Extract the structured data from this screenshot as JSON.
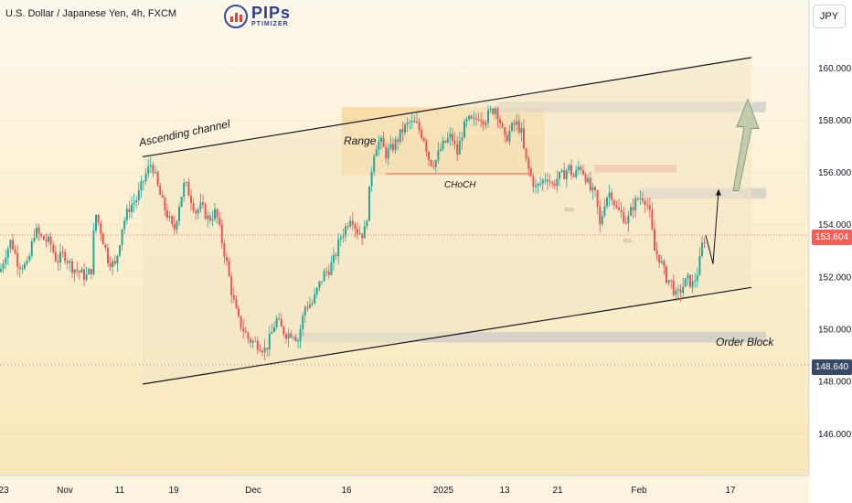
{
  "header": {
    "symbol_title": "U.S. Dollar / Japanese Yen, 4h, FXCM"
  },
  "logo": {
    "main": "PIPs",
    "sub": "PTIMIZER"
  },
  "currency_button": "JPY",
  "price_axis": {
    "ticks": [
      "160.000",
      "158.000",
      "156.000",
      "154.000",
      "152.000",
      "150.000",
      "148.000",
      "146.000"
    ],
    "current_price_label": "153.604",
    "low_price_label": "148.640"
  },
  "time_axis": {
    "ticks": [
      "23",
      "Nov",
      "11",
      "19",
      "Dec",
      "16",
      "2025",
      "13",
      "21",
      "Feb",
      "17"
    ]
  },
  "annotations": {
    "ascending_channel": "Ascending channel",
    "range": "Range",
    "choch": "CHoCH",
    "order_block": "Order Block",
    "bos1": "bos",
    "bos2": "bos"
  },
  "colors": {
    "up_candle": "#26a69a",
    "down_candle": "#ef5350",
    "current_price": "#f0615a",
    "low_price_box": "#3a4a66",
    "range_fill": "#f7c97e",
    "zone_fill": "#c9c9c9"
  },
  "chart_data": {
    "type": "candlestick",
    "symbol": "USDJPY",
    "timeframe": "4h",
    "ylim": [
      144.4,
      162.6
    ],
    "current_price": 153.604,
    "marked_low": 148.64,
    "close_path": [
      [
        0,
        152.2
      ],
      [
        6,
        152.9
      ],
      [
        12,
        153.4
      ],
      [
        20,
        152.5
      ],
      [
        30,
        152.4
      ],
      [
        38,
        153.8
      ],
      [
        45,
        153.5
      ],
      [
        55,
        153.3
      ],
      [
        62,
        152.6
      ],
      [
        70,
        152.9
      ],
      [
        78,
        152.4
      ],
      [
        86,
        152.2
      ],
      [
        94,
        152.0
      ],
      [
        100,
        152.3
      ],
      [
        104,
        154.5
      ],
      [
        110,
        153.8
      ],
      [
        118,
        152.7
      ],
      [
        126,
        152.4
      ],
      [
        134,
        154.0
      ],
      [
        142,
        154.7
      ],
      [
        150,
        155.0
      ],
      [
        158,
        155.8
      ],
      [
        166,
        156.4
      ],
      [
        172,
        155.5
      ],
      [
        178,
        154.8
      ],
      [
        184,
        154.3
      ],
      [
        190,
        153.7
      ],
      [
        196,
        154.8
      ],
      [
        202,
        155.6
      ],
      [
        208,
        155.1
      ],
      [
        214,
        154.5
      ],
      [
        220,
        154.7
      ],
      [
        228,
        154.2
      ],
      [
        236,
        154.5
      ],
      [
        242,
        153.5
      ],
      [
        248,
        152.5
      ],
      [
        254,
        151.3
      ],
      [
        260,
        150.4
      ],
      [
        266,
        150.0
      ],
      [
        272,
        149.6
      ],
      [
        278,
        149.5
      ],
      [
        284,
        149.4
      ],
      [
        290,
        149.2
      ],
      [
        296,
        149.7
      ],
      [
        302,
        150.4
      ],
      [
        308,
        150.0
      ],
      [
        314,
        149.8
      ],
      [
        320,
        149.9
      ],
      [
        326,
        149.6
      ],
      [
        334,
        150.9
      ],
      [
        342,
        151.0
      ],
      [
        348,
        151.6
      ],
      [
        354,
        152.1
      ],
      [
        360,
        152.3
      ],
      [
        366,
        152.7
      ],
      [
        372,
        153.5
      ],
      [
        378,
        153.9
      ],
      [
        384,
        154.4
      ],
      [
        390,
        153.8
      ],
      [
        398,
        153.6
      ],
      [
        402,
        154.5
      ],
      [
        406,
        156.0
      ],
      [
        410,
        157.0
      ],
      [
        416,
        157.2
      ],
      [
        422,
        156.7
      ],
      [
        428,
        156.9
      ],
      [
        434,
        157.2
      ],
      [
        440,
        157.6
      ],
      [
        448,
        157.9
      ],
      [
        456,
        157.8
      ],
      [
        464,
        157.3
      ],
      [
        470,
        156.4
      ],
      [
        476,
        156.4
      ],
      [
        482,
        156.9
      ],
      [
        488,
        157.2
      ],
      [
        494,
        157.4
      ],
      [
        500,
        156.7
      ],
      [
        506,
        157.6
      ],
      [
        512,
        158.0
      ],
      [
        518,
        157.9
      ],
      [
        524,
        158.2
      ],
      [
        530,
        158.0
      ],
      [
        536,
        158.3
      ],
      [
        542,
        158.5
      ],
      [
        546,
        158.1
      ],
      [
        552,
        157.2
      ],
      [
        558,
        157.6
      ],
      [
        564,
        157.9
      ],
      [
        570,
        157.6
      ],
      [
        574,
        156.6
      ],
      [
        580,
        155.9
      ],
      [
        586,
        155.4
      ],
      [
        592,
        155.6
      ],
      [
        598,
        155.9
      ],
      [
        604,
        155.5
      ],
      [
        610,
        155.8
      ],
      [
        616,
        155.9
      ],
      [
        622,
        156.2
      ],
      [
        628,
        155.8
      ],
      [
        634,
        156.3
      ],
      [
        640,
        155.9
      ],
      [
        646,
        155.3
      ],
      [
        652,
        155.1
      ],
      [
        656,
        153.9
      ],
      [
        662,
        155.0
      ],
      [
        668,
        155.3
      ],
      [
        674,
        154.6
      ],
      [
        680,
        154.4
      ],
      [
        686,
        154.1
      ],
      [
        692,
        154.7
      ],
      [
        698,
        155.0
      ],
      [
        704,
        155.1
      ],
      [
        710,
        154.6
      ],
      [
        716,
        153.0
      ],
      [
        722,
        152.7
      ],
      [
        728,
        152.0
      ],
      [
        734,
        151.8
      ],
      [
        740,
        151.2
      ],
      [
        746,
        151.6
      ],
      [
        752,
        151.9
      ],
      [
        758,
        151.7
      ],
      [
        764,
        152.3
      ],
      [
        768,
        153.2
      ],
      [
        772,
        153.6
      ]
    ],
    "channel": {
      "upper": [
        [
          156,
          156.6
        ],
        [
          822,
          160.4
        ]
      ],
      "lower": [
        [
          156,
          147.9
        ],
        [
          822,
          151.6
        ]
      ]
    },
    "zones": [
      {
        "name": "range",
        "x0": 374,
        "x1": 595,
        "y0": 155.9,
        "y1": 158.5
      },
      {
        "name": "supply_target",
        "x0": 545,
        "x1": 838,
        "y0": 158.3,
        "y1": 158.7
      },
      {
        "name": "resistance_zone",
        "x0": 700,
        "x1": 838,
        "y0": 155.0,
        "y1": 155.4
      },
      {
        "name": "red_zone",
        "x0": 650,
        "x1": 740,
        "y0": 156.0,
        "y1": 156.3
      },
      {
        "name": "order_block",
        "x0": 322,
        "x1": 838,
        "y0": 149.5,
        "y1": 149.9
      }
    ],
    "choch_level": 155.95,
    "projection_path": [
      [
        772,
        153.6
      ],
      [
        780,
        152.5
      ],
      [
        786,
        155.3
      ]
    ],
    "target_arrow": [
      [
        805,
        155.3
      ],
      [
        818,
        158.8
      ]
    ]
  }
}
